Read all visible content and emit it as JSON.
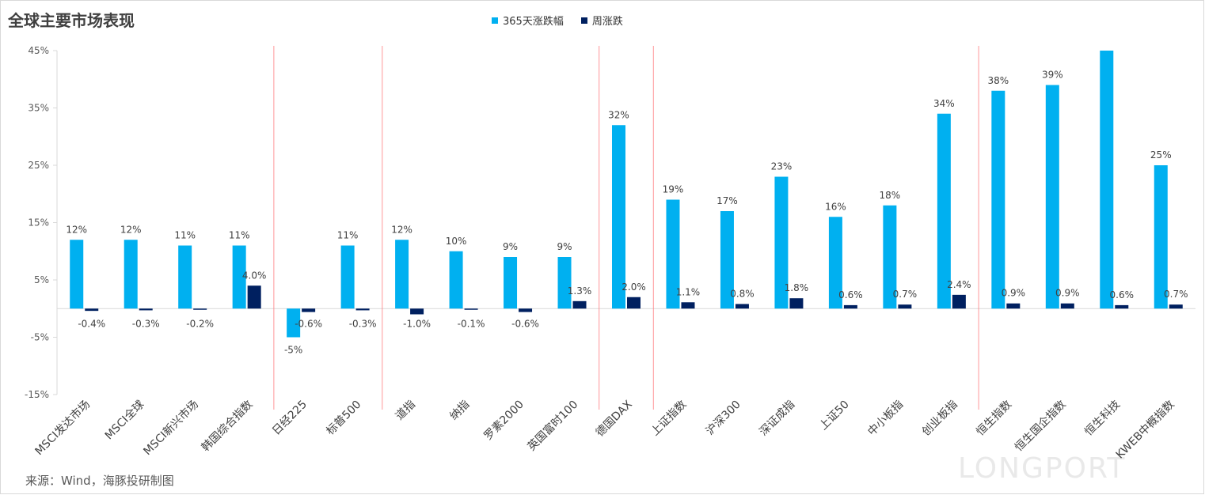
{
  "title": "全球主要市场表现",
  "source": "来源：Wind，海豚投研制图",
  "watermark": "LONGPORT",
  "colors": {
    "series1": "#00b0f0",
    "series2": "#002060",
    "divider": "#ff7c80",
    "axis": "#d9d9d9"
  },
  "chart_data": {
    "type": "bar",
    "title": "全球主要市场表现",
    "ylim": [
      -15,
      45
    ],
    "yticks": [
      "45%",
      "35%",
      "25%",
      "15%",
      "5%",
      "-5%",
      "-15%"
    ],
    "legend_position": "top",
    "categories": [
      "MSCI发达市场",
      "MSCI全球",
      "MSCI新兴市场",
      "韩国综合指数",
      "日经225",
      "标普500",
      "道指",
      "纳指",
      "罗素2000",
      "英国富时100",
      "德国DAX",
      "上证指数",
      "沪深300",
      "深证成指",
      "上证50",
      "中小板指",
      "创业板指",
      "恒生指数",
      "恒生国企指数",
      "恒生科技",
      "KWEB中概指数"
    ],
    "group_dividers_after": [
      3,
      5,
      9,
      10,
      16
    ],
    "series": [
      {
        "name": "365天涨跌幅",
        "values": [
          12,
          12,
          11,
          11,
          -5,
          11,
          12,
          10,
          9,
          9,
          32,
          19,
          17,
          23,
          16,
          18,
          34,
          38,
          39,
          45,
          25
        ],
        "labels": [
          "12%",
          "12%",
          "11%",
          "11%",
          "-5%",
          "11%",
          "12%",
          "10%",
          "9%",
          "9%",
          "32%",
          "19%",
          "17%",
          "23%",
          "16%",
          "18%",
          "34%",
          "38%",
          "39%",
          "",
          "25%"
        ]
      },
      {
        "name": "周涨跌",
        "values": [
          -0.4,
          -0.3,
          -0.2,
          4.0,
          -0.6,
          -0.3,
          -1.0,
          -0.1,
          -0.6,
          1.3,
          2.0,
          1.1,
          0.8,
          1.8,
          0.6,
          0.7,
          2.4,
          0.9,
          0.9,
          0.6,
          0.7
        ],
        "labels": [
          "-0.4%",
          "-0.3%",
          "-0.2%",
          "4.0%",
          "-0.6%",
          "-0.3%",
          "-1.0%",
          "-0.1%",
          "-0.6%",
          "1.3%",
          "2.0%",
          "1.1%",
          "0.8%",
          "1.8%",
          "0.6%",
          "0.7%",
          "2.4%",
          "0.9%",
          "0.9%",
          "0.6%",
          "0.7%"
        ]
      }
    ]
  }
}
